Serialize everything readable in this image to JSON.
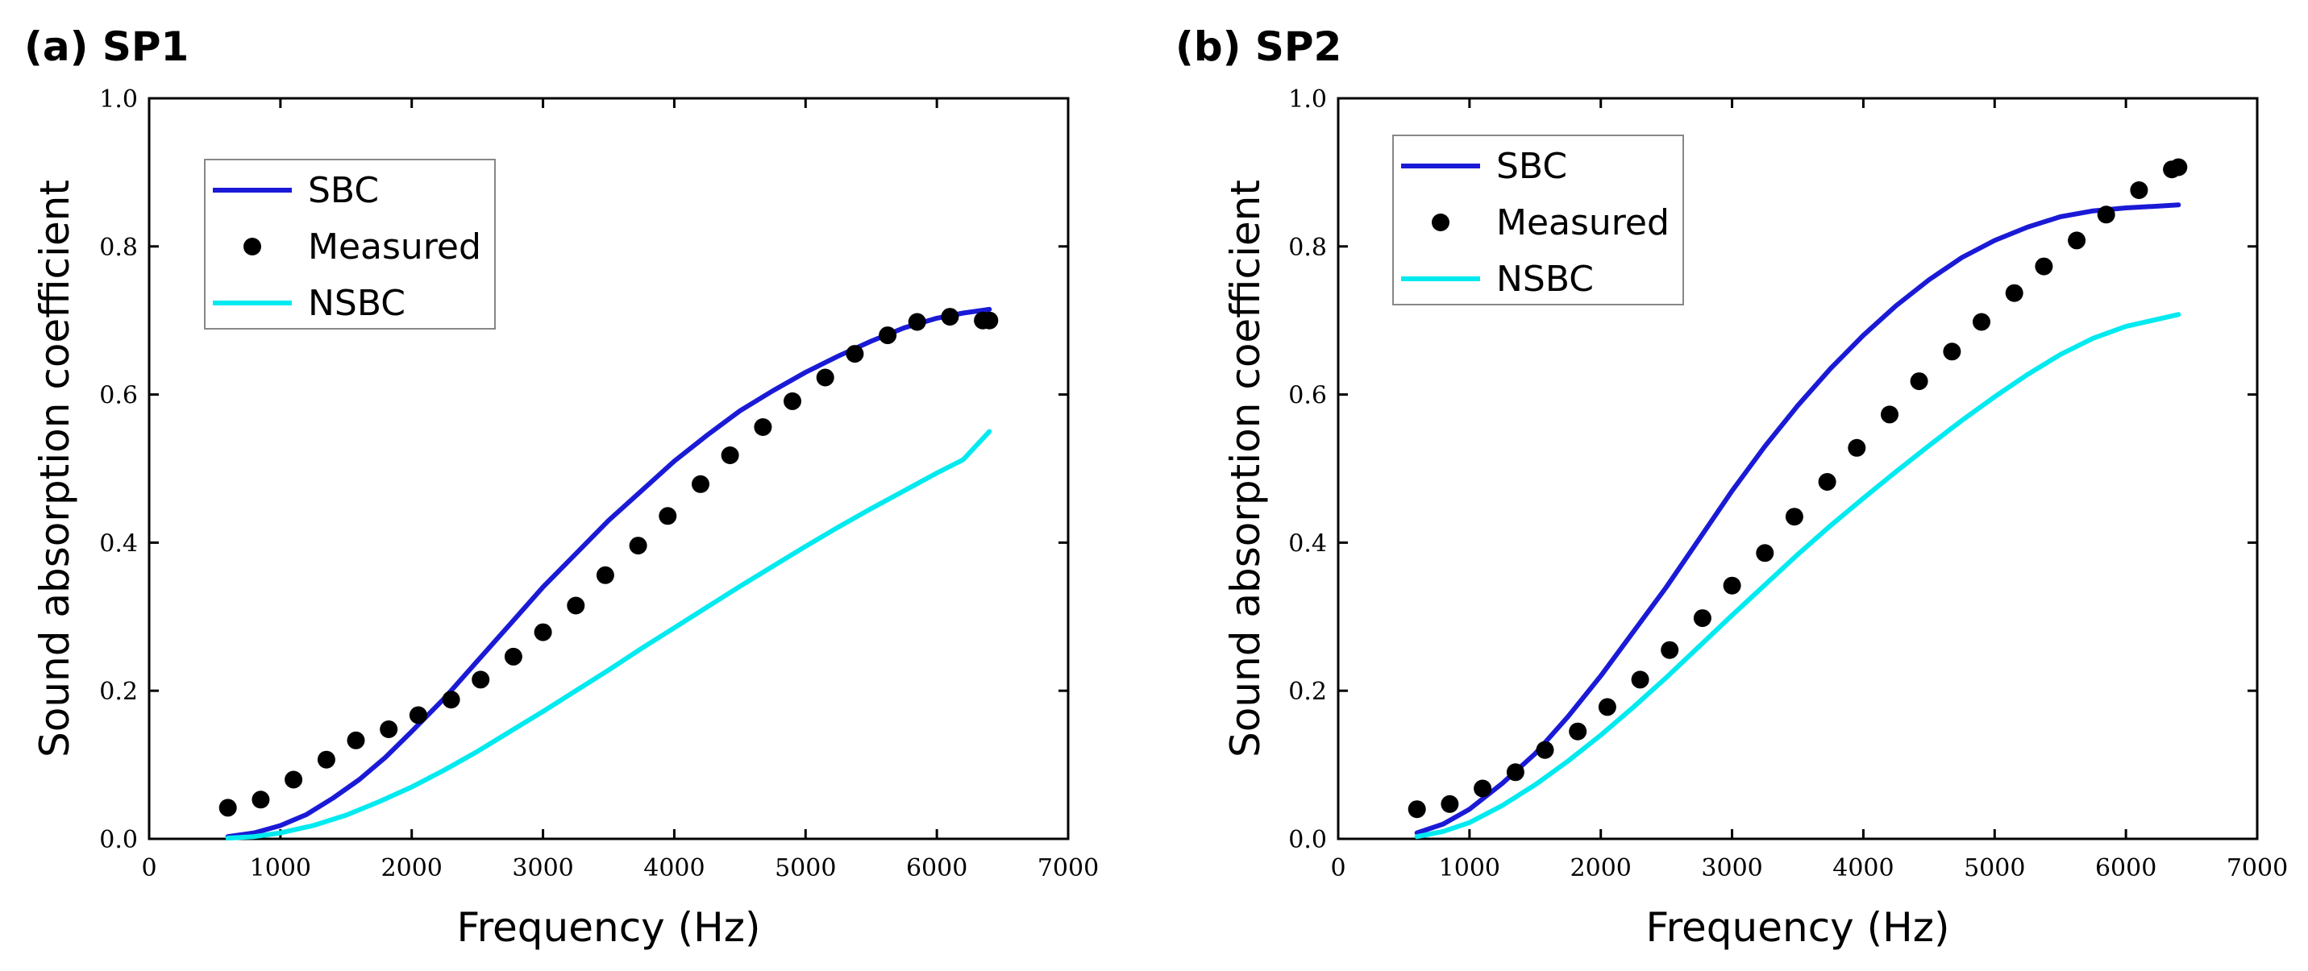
{
  "figure": {
    "panels": [
      "(a) SP1",
      "(b) SP2"
    ]
  },
  "chart_data": [
    {
      "type": "line",
      "title": "(a) SP1",
      "xlabel": "Frequency (Hz)",
      "ylabel": "Sound absorption coefficient",
      "xlim": [
        0,
        7000
      ],
      "ylim": [
        0,
        1.0
      ],
      "xticks": [
        0,
        1000,
        2000,
        3000,
        4000,
        5000,
        6000,
        7000
      ],
      "yticks": [
        0.0,
        0.2,
        0.4,
        0.6,
        0.8,
        1.0
      ],
      "xtick_labels": [
        "0",
        "1000",
        "2000",
        "3000",
        "4000",
        "5000",
        "6000",
        "7000"
      ],
      "ytick_labels": [
        "0.0",
        "0.2",
        "0.4",
        "0.6",
        "0.8",
        "1.0"
      ],
      "grid": false,
      "legend_position": "upper-left",
      "series": [
        {
          "name": "SBC",
          "style": "line",
          "color": "#1a1ad6",
          "x": [
            600,
            800,
            1000,
            1200,
            1400,
            1600,
            1800,
            2000,
            2250,
            2500,
            2750,
            3000,
            3250,
            3500,
            3750,
            4000,
            4250,
            4500,
            4750,
            5000,
            5250,
            5500,
            5750,
            6000,
            6200,
            6400
          ],
          "y": [
            0.003,
            0.008,
            0.018,
            0.033,
            0.055,
            0.08,
            0.11,
            0.145,
            0.19,
            0.24,
            0.29,
            0.34,
            0.385,
            0.43,
            0.47,
            0.51,
            0.545,
            0.578,
            0.605,
            0.63,
            0.652,
            0.672,
            0.69,
            0.703,
            0.71,
            0.715
          ]
        },
        {
          "name": "Measured",
          "style": "markers",
          "color": "#000000",
          "x": [
            600,
            850,
            1100,
            1350,
            1575,
            1825,
            2050,
            2300,
            2525,
            2775,
            3000,
            3250,
            3475,
            3725,
            3950,
            4200,
            4425,
            4675,
            4900,
            5150,
            5375,
            5625,
            5850,
            6100,
            6350,
            6400
          ],
          "y": [
            0.042,
            0.053,
            0.08,
            0.107,
            0.133,
            0.148,
            0.167,
            0.188,
            0.215,
            0.246,
            0.279,
            0.315,
            0.356,
            0.396,
            0.436,
            0.479,
            0.518,
            0.556,
            0.591,
            0.623,
            0.655,
            0.68,
            0.698,
            0.705,
            0.7,
            0.7
          ]
        },
        {
          "name": "NSBC",
          "style": "line",
          "color": "#00eaf0",
          "x": [
            600,
            800,
            1000,
            1250,
            1500,
            1750,
            2000,
            2250,
            2500,
            2750,
            3000,
            3250,
            3500,
            3750,
            4000,
            4250,
            4500,
            4750,
            5000,
            5250,
            5500,
            5750,
            6000,
            6200,
            6400
          ],
          "y": [
            0.001,
            0.003,
            0.008,
            0.018,
            0.032,
            0.05,
            0.07,
            0.093,
            0.118,
            0.145,
            0.172,
            0.2,
            0.228,
            0.257,
            0.285,
            0.313,
            0.341,
            0.368,
            0.395,
            0.421,
            0.446,
            0.47,
            0.494,
            0.512,
            0.55
          ]
        }
      ]
    },
    {
      "type": "line",
      "title": "(b) SP2",
      "xlabel": "Frequency (Hz)",
      "ylabel": "Sound absorption coefficient",
      "xlim": [
        0,
        7000
      ],
      "ylim": [
        0,
        1.0
      ],
      "xticks": [
        0,
        1000,
        2000,
        3000,
        4000,
        5000,
        6000,
        7000
      ],
      "yticks": [
        0.0,
        0.2,
        0.4,
        0.6,
        0.8,
        1.0
      ],
      "xtick_labels": [
        "0",
        "1000",
        "2000",
        "3000",
        "4000",
        "5000",
        "6000",
        "7000"
      ],
      "ytick_labels": [
        "0.0",
        "0.2",
        "0.4",
        "0.6",
        "0.8",
        "1.0"
      ],
      "grid": false,
      "legend_position": "upper-left",
      "series": [
        {
          "name": "SBC",
          "style": "line",
          "color": "#1a1ad6",
          "x": [
            600,
            800,
            1000,
            1250,
            1500,
            1750,
            2000,
            2250,
            2500,
            2750,
            3000,
            3250,
            3500,
            3750,
            4000,
            4250,
            4500,
            4750,
            5000,
            5250,
            5500,
            5750,
            6000,
            6200,
            6400
          ],
          "y": [
            0.008,
            0.02,
            0.04,
            0.075,
            0.115,
            0.165,
            0.22,
            0.28,
            0.34,
            0.405,
            0.47,
            0.53,
            0.585,
            0.635,
            0.68,
            0.72,
            0.755,
            0.785,
            0.808,
            0.826,
            0.84,
            0.848,
            0.852,
            0.854,
            0.856
          ]
        },
        {
          "name": "Measured",
          "style": "markers",
          "color": "#000000",
          "x": [
            600,
            850,
            1100,
            1350,
            1575,
            1825,
            2050,
            2300,
            2525,
            2775,
            3000,
            3250,
            3475,
            3725,
            3950,
            4200,
            4425,
            4675,
            4900,
            5150,
            5375,
            5625,
            5850,
            6100,
            6350,
            6400
          ],
          "y": [
            0.04,
            0.047,
            0.068,
            0.09,
            0.12,
            0.145,
            0.178,
            0.215,
            0.255,
            0.298,
            0.342,
            0.386,
            0.435,
            0.482,
            0.528,
            0.573,
            0.618,
            0.658,
            0.698,
            0.737,
            0.773,
            0.808,
            0.843,
            0.876,
            0.904,
            0.907
          ]
        },
        {
          "name": "NSBC",
          "style": "line",
          "color": "#00eaf0",
          "x": [
            600,
            800,
            1000,
            1250,
            1500,
            1750,
            2000,
            2250,
            2500,
            2750,
            3000,
            3250,
            3500,
            3750,
            4000,
            4250,
            4500,
            4750,
            5000,
            5250,
            5500,
            5750,
            6000,
            6200,
            6400
          ],
          "y": [
            0.003,
            0.01,
            0.022,
            0.045,
            0.073,
            0.105,
            0.14,
            0.178,
            0.218,
            0.26,
            0.302,
            0.343,
            0.384,
            0.423,
            0.46,
            0.496,
            0.531,
            0.565,
            0.597,
            0.627,
            0.654,
            0.676,
            0.692,
            0.7,
            0.708
          ]
        }
      ]
    }
  ]
}
